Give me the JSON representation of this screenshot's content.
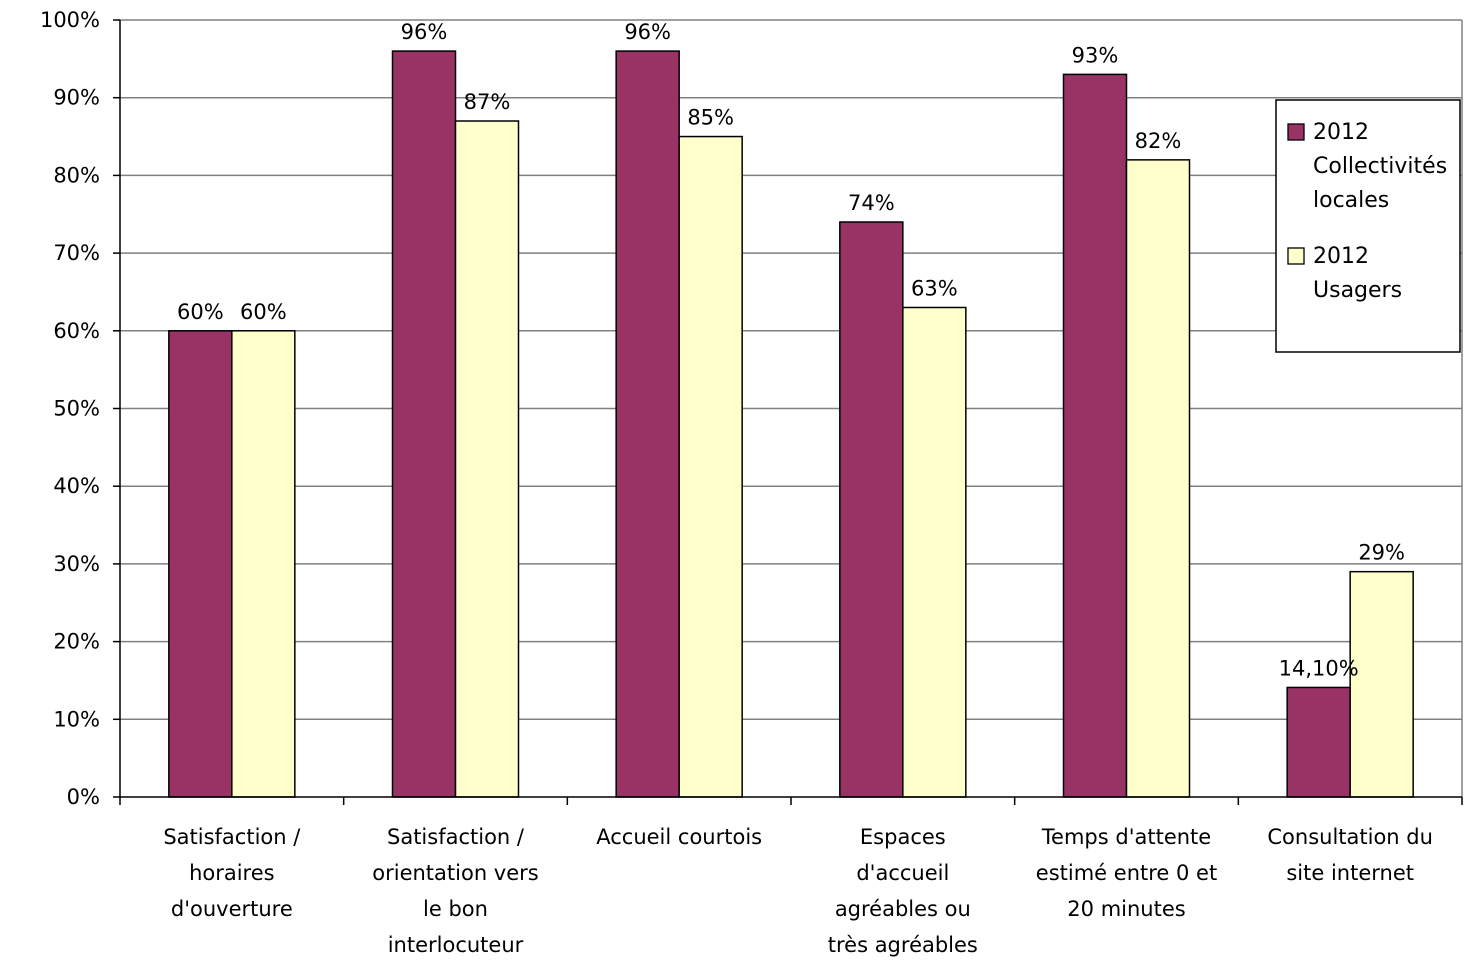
{
  "chart_data": {
    "type": "bar",
    "categories": [
      [
        "Satisfaction /",
        "horaires",
        "d'ouverture"
      ],
      [
        "Satisfaction /",
        "orientation vers",
        "le bon",
        "interlocuteur"
      ],
      [
        "Accueil courtois"
      ],
      [
        "Espaces",
        "d'accueil",
        "agréables ou",
        "très agréables"
      ],
      [
        "Temps d'attente",
        "estimé entre 0 et",
        "20 minutes"
      ],
      [
        "Consultation du",
        "site internet"
      ]
    ],
    "series": [
      {
        "name": [
          "2012",
          "Collectivités",
          "locales"
        ],
        "color": "#993366",
        "values": [
          60,
          96,
          96,
          74,
          93,
          14.1
        ],
        "labels": [
          "60%",
          "96%",
          "96%",
          "74%",
          "93%",
          "14,10%"
        ]
      },
      {
        "name": [
          "2012",
          "Usagers"
        ],
        "color": "#FFFFCC",
        "values": [
          60,
          87,
          85,
          63,
          82,
          29
        ],
        "labels": [
          "60%",
          "87%",
          "85%",
          "63%",
          "82%",
          "29%"
        ]
      }
    ],
    "ylim": [
      0,
      100
    ],
    "yticks": [
      0,
      10,
      20,
      30,
      40,
      50,
      60,
      70,
      80,
      90,
      100
    ],
    "ytick_labels": [
      "0%",
      "10%",
      "20%",
      "30%",
      "40%",
      "50%",
      "60%",
      "70%",
      "80%",
      "90%",
      "100%"
    ],
    "grid": true,
    "legend_position": "right",
    "title": "",
    "xlabel": "",
    "ylabel": ""
  }
}
